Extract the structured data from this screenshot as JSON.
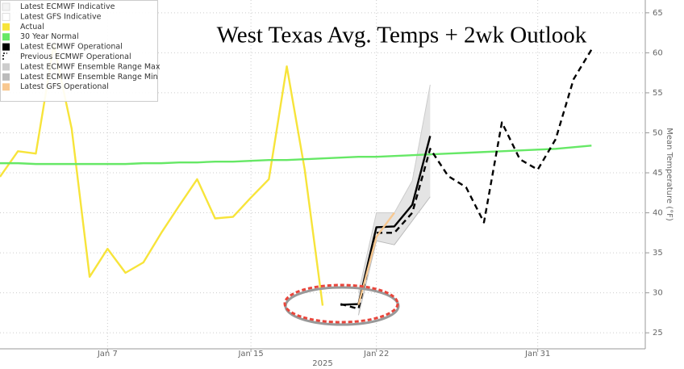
{
  "chart_data": {
    "type": "line",
    "title": "West Texas Avg. Temps + 2wk Outlook",
    "ylabel": "Mean Temperature (°F)",
    "xlabel": "2025",
    "x": [
      "2025-01-01",
      "2025-01-02",
      "2025-01-03",
      "2025-01-04",
      "2025-01-05",
      "2025-01-06",
      "2025-01-07",
      "2025-01-08",
      "2025-01-09",
      "2025-01-10",
      "2025-01-11",
      "2025-01-12",
      "2025-01-13",
      "2025-01-14",
      "2025-01-15",
      "2025-01-16",
      "2025-01-17",
      "2025-01-18",
      "2025-01-19",
      "2025-01-20",
      "2025-01-21",
      "2025-01-22",
      "2025-01-23",
      "2025-01-24",
      "2025-01-25",
      "2025-01-26",
      "2025-01-27",
      "2025-01-28",
      "2025-01-29",
      "2025-01-30",
      "2025-01-31",
      "2025-02-01",
      "2025-02-02",
      "2025-02-03"
    ],
    "xlim": [
      "2025-01-01",
      "2025-02-06"
    ],
    "xticks": [
      {
        "value": "2025-01-07",
        "label": "Jan 7"
      },
      {
        "value": "2025-01-15",
        "label": "Jan 15"
      },
      {
        "value": "2025-01-22",
        "label": "Jan 22"
      },
      {
        "value": "2025-01-31",
        "label": "Jan 31"
      }
    ],
    "ylim": [
      23,
      66.6
    ],
    "yticks": [
      25,
      30,
      35,
      40,
      45,
      50,
      55,
      60,
      65
    ],
    "grid": true,
    "series": [
      {
        "name": "Latest ECMWF Indicative",
        "color": "#f4f4f4",
        "values": [
          null,
          null,
          null,
          null,
          null,
          null,
          null,
          null,
          null,
          null,
          null,
          null,
          null,
          null,
          null,
          null,
          null,
          null,
          null,
          null,
          null,
          null,
          null,
          null,
          null,
          null,
          null,
          null,
          null,
          null,
          null,
          null,
          null,
          null
        ]
      },
      {
        "name": "Latest GFS Indicative",
        "color": "#ffffff",
        "values": [
          null,
          null,
          null,
          null,
          null,
          null,
          null,
          null,
          null,
          null,
          null,
          null,
          null,
          null,
          null,
          null,
          null,
          null,
          null,
          null,
          null,
          null,
          null,
          null,
          null,
          null,
          null,
          null,
          null,
          null,
          null,
          null,
          null,
          null
        ]
      },
      {
        "name": "Actual",
        "color": "#f7e43a",
        "values": [
          44.5,
          47.7,
          47.4,
          61,
          50.5,
          32,
          35.5,
          32.5,
          33.8,
          37.5,
          40.9,
          44.2,
          39.3,
          39.5,
          41.9,
          44.2,
          58.3,
          45.4,
          28.4,
          null,
          null,
          null,
          null,
          null,
          null,
          null,
          null,
          null,
          null,
          null,
          null,
          null,
          null,
          null
        ]
      },
      {
        "name": "30 Year Normal",
        "color": "#66e866",
        "values": [
          46.2,
          46.2,
          46.1,
          46.1,
          46.1,
          46.1,
          46.1,
          46.1,
          46.2,
          46.2,
          46.3,
          46.3,
          46.4,
          46.4,
          46.5,
          46.6,
          46.6,
          46.7,
          46.8,
          46.9,
          47.0,
          47.0,
          47.1,
          47.2,
          47.3,
          47.4,
          47.5,
          47.6,
          47.7,
          47.8,
          47.9,
          48.0,
          48.2,
          48.4
        ]
      },
      {
        "name": "Latest ECMWF Operational",
        "color": "#000000",
        "values": [
          null,
          null,
          null,
          null,
          null,
          null,
          null,
          null,
          null,
          null,
          null,
          null,
          null,
          null,
          null,
          null,
          null,
          null,
          null,
          28.5,
          28.6,
          38.2,
          38.3,
          41.0,
          49.6,
          null,
          null,
          null,
          null,
          null,
          null,
          null,
          null,
          null
        ]
      },
      {
        "name": "Previous ECMWF Operational",
        "color": "#000000",
        "dashed": true,
        "values": [
          null,
          null,
          null,
          null,
          null,
          null,
          null,
          null,
          null,
          null,
          null,
          null,
          null,
          null,
          null,
          null,
          null,
          null,
          null,
          28.6,
          28.0,
          37.5,
          37.5,
          40.0,
          48.0,
          44.6,
          43.2,
          38.8,
          51.3,
          46.7,
          45.4,
          49.2,
          56.7,
          60.4
        ]
      },
      {
        "name": "Latest ECMWF Ensemble Range Max",
        "color": "#cccccc",
        "band": "max",
        "values": [
          null,
          null,
          null,
          null,
          null,
          null,
          null,
          null,
          null,
          null,
          null,
          null,
          null,
          null,
          null,
          null,
          null,
          null,
          null,
          null,
          30.0,
          40.0,
          40.0,
          44.0,
          56.0,
          null,
          null,
          null,
          null,
          null,
          null,
          null,
          null,
          null
        ]
      },
      {
        "name": "Latest ECMWF Ensemble Range Min",
        "color": "#bbbbbb",
        "band": "min",
        "values": [
          null,
          null,
          null,
          null,
          null,
          null,
          null,
          null,
          null,
          null,
          null,
          null,
          null,
          null,
          null,
          null,
          null,
          null,
          null,
          null,
          27.2,
          36.5,
          36.0,
          39.0,
          42.0,
          null,
          null,
          null,
          null,
          null,
          null,
          null,
          null,
          null
        ]
      },
      {
        "name": "Latest GFS Operational",
        "color": "#f8c890",
        "values": [
          null,
          null,
          null,
          null,
          null,
          null,
          null,
          null,
          null,
          null,
          null,
          null,
          null,
          null,
          null,
          null,
          null,
          null,
          null,
          null,
          28.5,
          37.0,
          40.0,
          null,
          null,
          null,
          null,
          null,
          null,
          null,
          null,
          null,
          null,
          null
        ]
      }
    ]
  }
}
